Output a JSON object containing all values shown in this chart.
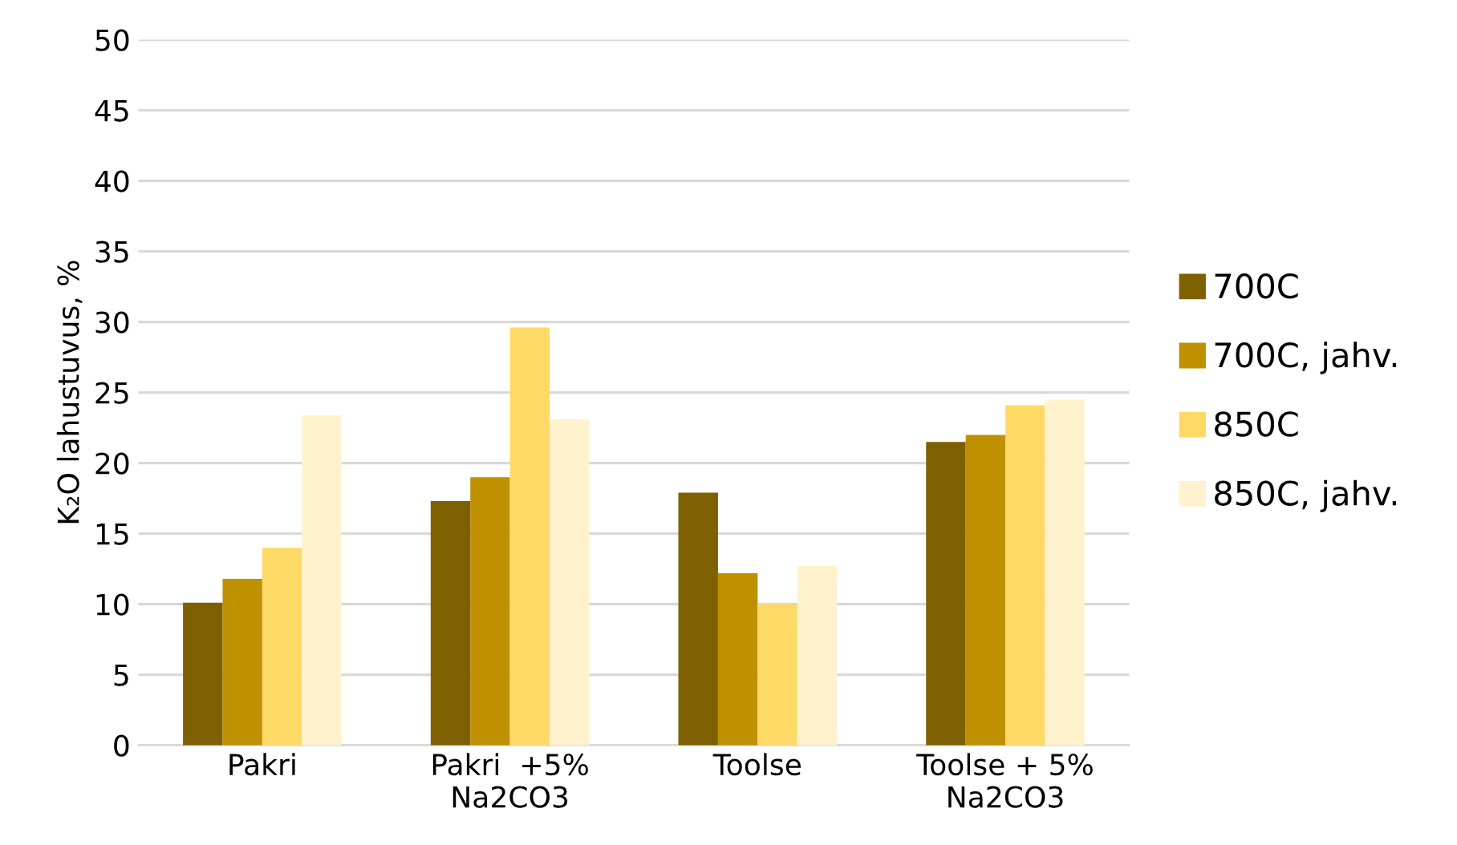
{
  "chart_data": {
    "type": "bar",
    "ylabel": "K₂O lahustuvus, %",
    "categories": [
      "Pakri",
      "Pakri  +5%\nNa2CO3",
      "Toolse",
      "Toolse + 5%\nNa2CO3"
    ],
    "series": [
      {
        "name": "700C",
        "color": "#7f6000",
        "values": [
          10.1,
          17.3,
          17.9,
          21.5
        ]
      },
      {
        "name": "700C, jahv.",
        "color": "#bf9000",
        "values": [
          11.8,
          19.0,
          12.2,
          22.0
        ]
      },
      {
        "name": "850C",
        "color": "#ffd966",
        "values": [
          14.0,
          29.6,
          10.0,
          24.1
        ]
      },
      {
        "name": "850C, jahv.",
        "color": "#fff2cc",
        "values": [
          23.4,
          23.1,
          12.7,
          24.5
        ]
      }
    ],
    "ylim": [
      0,
      50
    ],
    "yticks": [
      0,
      5,
      10,
      15,
      20,
      25,
      30,
      35,
      40,
      45,
      50
    ],
    "grid": "y",
    "legend": "right"
  }
}
